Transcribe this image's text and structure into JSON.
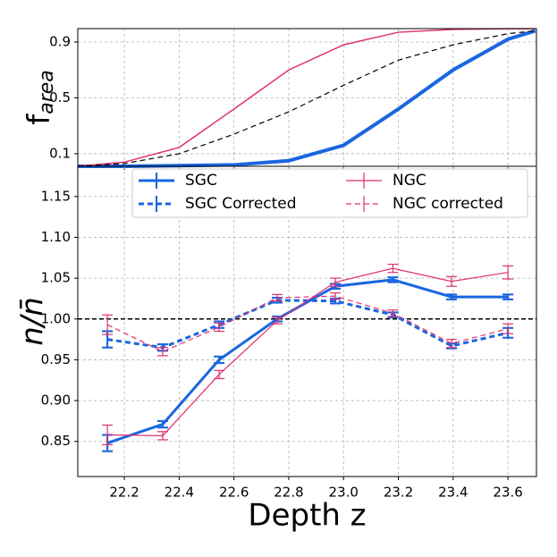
{
  "chart_data": [
    {
      "type": "line",
      "ylabel": "f",
      "ylabel_sub": "area",
      "x": [
        22.03,
        22.2,
        22.4,
        22.6,
        22.8,
        23.0,
        23.2,
        23.4,
        23.6,
        23.7
      ],
      "series": [
        {
          "name": "SGC",
          "color": "#1a66e0",
          "width": 4,
          "values": [
            0.01,
            0.01,
            0.015,
            0.02,
            0.05,
            0.16,
            0.42,
            0.7,
            0.92,
            0.98
          ]
        },
        {
          "name": "NGC",
          "color": "#e0306e",
          "width": 1.5,
          "values": [
            0.01,
            0.04,
            0.145,
            0.42,
            0.7,
            0.88,
            0.97,
            0.99,
            0.995,
            0.995
          ]
        },
        {
          "color": "#000000",
          "width": 1.2,
          "dash": true,
          "values": [
            0.01,
            0.03,
            0.1,
            0.24,
            0.4,
            0.59,
            0.77,
            0.88,
            0.96,
            0.98
          ]
        }
      ],
      "xlim": [
        22.03,
        23.704
      ],
      "xticks": [
        22.2,
        22.4,
        22.6,
        22.8,
        {
          "value": 23,
          "label": "23.0"
        },
        23.2,
        23.4,
        23.6
      ],
      "ylim": [
        0.01,
        0.996
      ],
      "yticks": [
        0.1,
        0.5,
        0.9
      ],
      "grid": true
    },
    {
      "type": "errorbar",
      "ylabel": "n/n̄",
      "xlabel": "Depth z",
      "x": [
        22.138,
        22.34,
        22.546,
        22.758,
        22.97,
        23.18,
        23.394,
        23.6
      ],
      "series": [
        {
          "name": "SGC",
          "color": "#1a66e0",
          "width": 3,
          "values": [
            0.848,
            0.871,
            0.95,
            1.0,
            1.04,
            1.048,
            1.027,
            1.027
          ],
          "errors": [
            0.01,
            0.004,
            0.004,
            0.003,
            0.003,
            0.003,
            0.003,
            0.003
          ]
        },
        {
          "name": "SGC Corrected",
          "color": "#1a66e0",
          "width": 3,
          "dash": true,
          "values": [
            0.975,
            0.965,
            0.993,
            1.023,
            1.022,
            1.005,
            0.967,
            0.983
          ],
          "errors": [
            0.01,
            0.004,
            0.004,
            0.003,
            0.003,
            0.003,
            0.003,
            0.006
          ]
        },
        {
          "name": "NGC",
          "color": "#e0306e",
          "width": 1.2,
          "values": [
            0.858,
            0.857,
            0.932,
            0.998,
            1.045,
            1.062,
            1.046,
            1.057
          ],
          "errors": [
            0.012,
            0.005,
            0.005,
            0.004,
            0.005,
            0.005,
            0.006,
            0.008
          ]
        },
        {
          "name": "NGC corrected",
          "color": "#e0306e",
          "width": 1.2,
          "dash": true,
          "values": [
            0.993,
            0.96,
            0.99,
            1.026,
            1.028,
            1.007,
            0.97,
            0.988
          ],
          "errors": [
            0.012,
            0.005,
            0.005,
            0.004,
            0.004,
            0.004,
            0.005,
            0.006
          ]
        }
      ],
      "hline": 1,
      "xlim": [
        22.03,
        23.704
      ],
      "xticks": [
        22.2,
        22.4,
        22.6,
        22.8,
        {
          "value": 23,
          "label": "23.0"
        },
        23.2,
        23.4,
        23.6
      ],
      "ylim": [
        0.807,
        1.187
      ],
      "yticks": [
        0.85,
        {
          "value": 0.9,
          "label": "0.90"
        },
        0.95,
        {
          "value": 1,
          "label": "1.00"
        },
        1.05,
        {
          "value": 1.1,
          "label": "1.10"
        },
        1.15
      ],
      "grid": true,
      "legend": "top"
    }
  ]
}
